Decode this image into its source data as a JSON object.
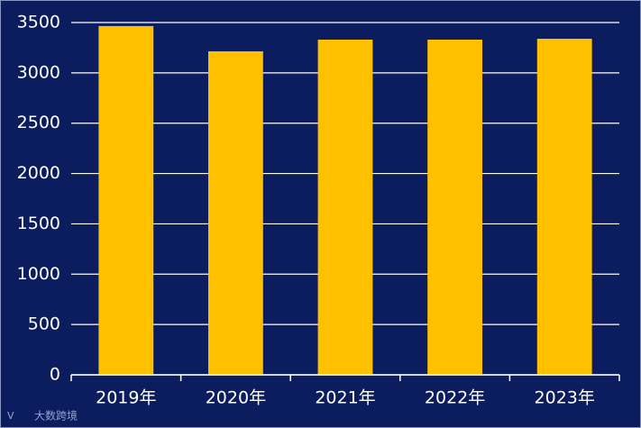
{
  "chart_data": {
    "type": "bar",
    "categories": [
      "2019年",
      "2020年",
      "2021年",
      "2022年",
      "2023年"
    ],
    "values": [
      3465,
      3214,
      3330,
      3330,
      3339
    ],
    "color": "#ffc000",
    "ylim": [
      0,
      3500
    ],
    "yticks": [
      0,
      500,
      1000,
      1500,
      2000,
      2500,
      3000,
      3500
    ],
    "grid": true,
    "watermark": "大数跨境"
  }
}
